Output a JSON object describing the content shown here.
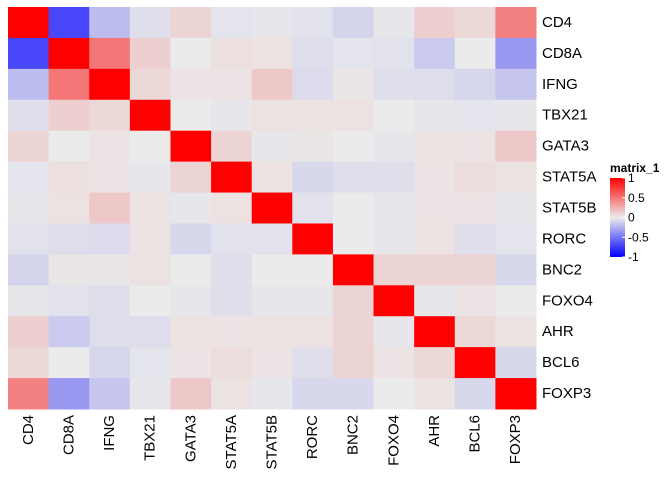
{
  "chart_data": {
    "type": "heatmap",
    "title": "",
    "xlabel": "",
    "ylabel": "",
    "rows": [
      "CD4",
      "CD8A",
      "IFNG",
      "TBX21",
      "GATA3",
      "STAT5A",
      "STAT5B",
      "RORC",
      "BNC2",
      "FOXO4",
      "AHR",
      "BCL6",
      "FOXP3"
    ],
    "cols": [
      "CD4",
      "CD8A",
      "IFNG",
      "TBX21",
      "GATA3",
      "STAT5A",
      "STAT5B",
      "RORC",
      "BNC2",
      "FOXO4",
      "AHR",
      "BCL6",
      "FOXP3"
    ],
    "values": [
      [
        1.0,
        -0.7,
        -0.2,
        -0.05,
        0.1,
        -0.03,
        -0.02,
        -0.04,
        -0.1,
        -0.02,
        0.12,
        0.08,
        0.45
      ],
      [
        -0.7,
        1.0,
        0.5,
        0.12,
        0.0,
        0.05,
        0.04,
        -0.06,
        -0.03,
        -0.04,
        -0.14,
        0.0,
        -0.35
      ],
      [
        -0.2,
        0.5,
        1.0,
        0.08,
        0.03,
        0.03,
        0.15,
        -0.07,
        0.02,
        -0.05,
        -0.06,
        -0.09,
        -0.16
      ],
      [
        -0.05,
        0.12,
        0.08,
        1.0,
        0.0,
        -0.02,
        0.04,
        0.04,
        0.04,
        0.0,
        -0.02,
        -0.03,
        -0.02
      ],
      [
        0.1,
        0.0,
        0.03,
        0.0,
        1.0,
        0.1,
        -0.02,
        0.02,
        0.0,
        -0.02,
        0.04,
        0.03,
        0.15
      ],
      [
        -0.03,
        0.05,
        0.03,
        -0.02,
        0.1,
        1.0,
        0.04,
        -0.08,
        -0.05,
        -0.05,
        0.03,
        0.06,
        0.04
      ],
      [
        -0.02,
        0.04,
        0.15,
        0.04,
        -0.02,
        0.04,
        1.0,
        -0.04,
        0.0,
        -0.02,
        0.03,
        0.03,
        -0.02
      ],
      [
        -0.04,
        -0.06,
        -0.07,
        0.04,
        -0.08,
        -0.04,
        -0.04,
        1.0,
        0.0,
        -0.02,
        0.04,
        -0.05,
        -0.03
      ],
      [
        -0.1,
        0.02,
        0.02,
        0.04,
        0.0,
        -0.05,
        0.0,
        0.0,
        1.0,
        0.1,
        0.1,
        0.1,
        -0.08
      ],
      [
        -0.02,
        -0.04,
        -0.05,
        0.0,
        -0.02,
        -0.05,
        -0.02,
        -0.02,
        0.1,
        1.0,
        -0.02,
        0.03,
        0.0
      ],
      [
        0.12,
        -0.14,
        -0.06,
        -0.06,
        0.04,
        0.03,
        0.04,
        0.04,
        0.1,
        -0.02,
        1.0,
        0.08,
        0.04
      ],
      [
        0.08,
        0.0,
        -0.09,
        -0.03,
        0.03,
        0.06,
        0.03,
        -0.05,
        0.1,
        0.03,
        0.08,
        1.0,
        -0.08
      ],
      [
        0.45,
        -0.35,
        -0.16,
        -0.02,
        0.15,
        0.04,
        -0.02,
        -0.08,
        -0.08,
        0.0,
        0.04,
        -0.08,
        1.0
      ]
    ],
    "legend": {
      "title": "matrix_1",
      "breaks": [
        "1",
        "0.5",
        "0",
        "-0.5",
        "-1"
      ],
      "break_values": [
        1,
        0.5,
        0,
        -0.5,
        -1
      ],
      "placement": "right"
    },
    "colors": {
      "high": "#ff0000",
      "mid": "#ebebeb",
      "low": "#0000ff"
    },
    "range": [
      -1,
      1
    ],
    "grid": false
  }
}
